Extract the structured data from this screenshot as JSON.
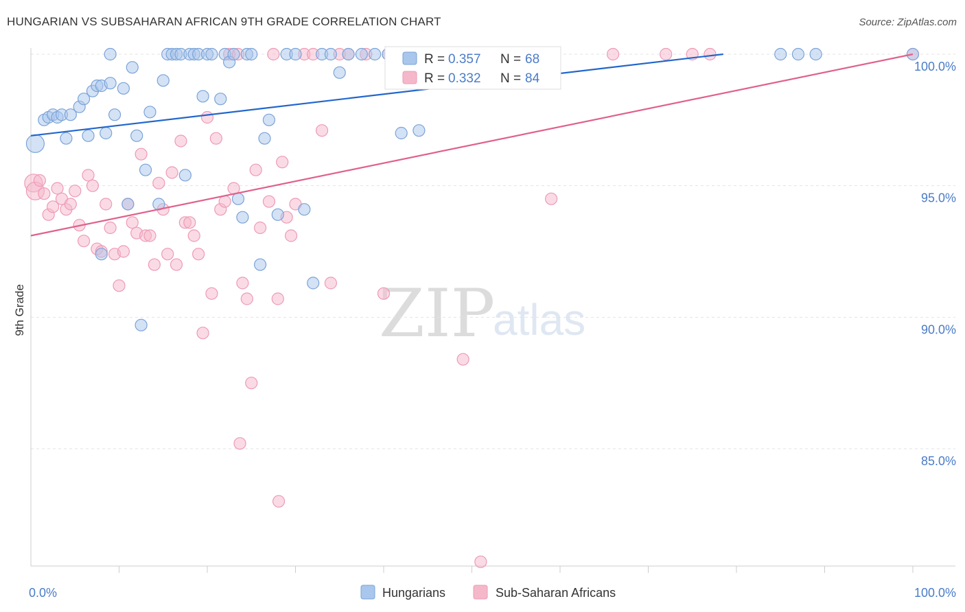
{
  "title": "HUNGARIAN VS SUBSAHARAN AFRICAN 9TH GRADE CORRELATION CHART",
  "source": "Source: ZipAtlas.com",
  "watermark": {
    "zip": "ZIP",
    "atlas": "atlas"
  },
  "colors": {
    "blue_fill": "#a9c6ec",
    "blue_stroke": "#7aa3d8",
    "blue_line": "#2266cc",
    "pink_fill": "#f5b8cb",
    "pink_stroke": "#ee9ab4",
    "pink_line": "#e0608a",
    "axis_label": "#4a7cc7",
    "grid": "#e3e3e3"
  },
  "legend": {
    "rows": [
      {
        "r_label": "R = ",
        "r_value": "0.357",
        "n_label": "N = ",
        "n_value": "68",
        "color": "blue"
      },
      {
        "r_label": "R = ",
        "r_value": "0.332",
        "n_label": "N = ",
        "n_value": "84",
        "color": "pink"
      }
    ]
  },
  "chart_data": {
    "type": "scatter",
    "title": "HUNGARIAN VS SUBSAHARAN AFRICAN 9TH GRADE CORRELATION CHART",
    "xlabel": "",
    "ylabel": "9th Grade",
    "xlim": [
      0,
      100
    ],
    "ylim": [
      80.5,
      100.8
    ],
    "x_tick_labels": [
      {
        "value": 0,
        "label": "0.0%"
      },
      {
        "value": 100,
        "label": "100.0%"
      }
    ],
    "x_minor_ticks": [
      10,
      20,
      30,
      40,
      50,
      60,
      70,
      80,
      90,
      100
    ],
    "y_ticks": [
      {
        "value": 100,
        "label": "100.0%"
      },
      {
        "value": 95,
        "label": "95.0%"
      },
      {
        "value": 90,
        "label": "90.0%"
      },
      {
        "value": 85,
        "label": "85.0%"
      }
    ],
    "grid": true,
    "legend_position": "top-center",
    "series": [
      {
        "name": "Hungarians",
        "color": "blue",
        "trend": {
          "x": [
            0,
            78.5
          ],
          "y": [
            96.9,
            100.0
          ]
        },
        "points": [
          [
            0.5,
            96.6
          ],
          [
            1.5,
            97.5
          ],
          [
            2.0,
            97.6
          ],
          [
            2.5,
            97.7
          ],
          [
            3.0,
            97.6
          ],
          [
            3.5,
            97.7
          ],
          [
            4.0,
            96.8
          ],
          [
            4.5,
            97.7
          ],
          [
            5.5,
            98.0
          ],
          [
            6.0,
            98.3
          ],
          [
            6.5,
            96.9
          ],
          [
            7.0,
            98.6
          ],
          [
            7.5,
            98.8
          ],
          [
            8.0,
            98.8
          ],
          [
            8.5,
            97.0
          ],
          [
            9.0,
            98.9
          ],
          [
            9.5,
            97.7
          ],
          [
            10.5,
            98.7
          ],
          [
            11.0,
            94.3
          ],
          [
            11.5,
            99.5
          ],
          [
            12.0,
            96.9
          ],
          [
            12.5,
            89.7
          ],
          [
            13.0,
            95.6
          ],
          [
            13.5,
            97.8
          ],
          [
            14.5,
            94.3
          ],
          [
            15.0,
            99.0
          ],
          [
            15.5,
            100.0
          ],
          [
            16.0,
            100.0
          ],
          [
            16.5,
            100.0
          ],
          [
            17.0,
            100.0
          ],
          [
            17.5,
            95.4
          ],
          [
            18.0,
            100.0
          ],
          [
            18.5,
            100.0
          ],
          [
            19.0,
            100.0
          ],
          [
            19.5,
            98.4
          ],
          [
            20.0,
            100.0
          ],
          [
            20.5,
            100.0
          ],
          [
            21.5,
            98.3
          ],
          [
            22.0,
            100.0
          ],
          [
            22.5,
            99.7
          ],
          [
            23.0,
            100.0
          ],
          [
            23.5,
            94.5
          ],
          [
            24.0,
            93.8
          ],
          [
            24.5,
            100.0
          ],
          [
            25.0,
            100.0
          ],
          [
            26.0,
            92.0
          ],
          [
            26.5,
            96.8
          ],
          [
            27.0,
            97.5
          ],
          [
            28.0,
            93.9
          ],
          [
            29.0,
            100.0
          ],
          [
            30.0,
            100.0
          ],
          [
            31.0,
            94.1
          ],
          [
            32.0,
            91.3
          ],
          [
            33.0,
            100.0
          ],
          [
            34.0,
            100.0
          ],
          [
            35.0,
            99.3
          ],
          [
            36.0,
            100.0
          ],
          [
            37.5,
            100.0
          ],
          [
            39.0,
            100.0
          ],
          [
            40.5,
            100.0
          ],
          [
            42.0,
            97.0
          ],
          [
            44.0,
            97.1
          ],
          [
            8.0,
            92.4
          ],
          [
            9.0,
            100.0
          ],
          [
            85.0,
            100.0
          ],
          [
            87.0,
            100.0
          ],
          [
            89.0,
            100.0
          ],
          [
            100.0,
            100.0
          ]
        ]
      },
      {
        "name": "Sub-Saharan Africans",
        "color": "pink",
        "trend": {
          "x": [
            0,
            100
          ],
          "y": [
            93.1,
            100.0
          ]
        },
        "points": [
          [
            0.3,
            95.1
          ],
          [
            0.5,
            94.8
          ],
          [
            1.0,
            95.2
          ],
          [
            1.5,
            94.7
          ],
          [
            2.0,
            93.9
          ],
          [
            2.5,
            94.2
          ],
          [
            3.0,
            94.9
          ],
          [
            3.5,
            94.5
          ],
          [
            4.0,
            94.1
          ],
          [
            4.5,
            94.3
          ],
          [
            5.0,
            94.8
          ],
          [
            5.5,
            93.5
          ],
          [
            6.0,
            92.9
          ],
          [
            6.5,
            95.4
          ],
          [
            7.0,
            95.0
          ],
          [
            7.5,
            92.6
          ],
          [
            8.0,
            92.5
          ],
          [
            8.5,
            94.3
          ],
          [
            9.0,
            93.4
          ],
          [
            9.5,
            92.4
          ],
          [
            10.0,
            91.2
          ],
          [
            10.5,
            92.5
          ],
          [
            11.0,
            94.3
          ],
          [
            11.5,
            93.6
          ],
          [
            12.0,
            93.2
          ],
          [
            12.5,
            96.2
          ],
          [
            13.0,
            93.1
          ],
          [
            13.5,
            93.1
          ],
          [
            14.0,
            92.0
          ],
          [
            14.5,
            95.1
          ],
          [
            15.0,
            94.1
          ],
          [
            15.5,
            92.4
          ],
          [
            16.0,
            95.5
          ],
          [
            16.5,
            92.0
          ],
          [
            17.0,
            96.7
          ],
          [
            17.5,
            93.6
          ],
          [
            18.0,
            93.6
          ],
          [
            18.5,
            93.1
          ],
          [
            19.0,
            92.4
          ],
          [
            19.5,
            89.4
          ],
          [
            20.0,
            97.6
          ],
          [
            20.5,
            90.9
          ],
          [
            21.0,
            96.8
          ],
          [
            21.5,
            94.1
          ],
          [
            22.0,
            94.4
          ],
          [
            22.5,
            100.0
          ],
          [
            23.0,
            94.9
          ],
          [
            23.5,
            100.0
          ],
          [
            24.0,
            91.3
          ],
          [
            24.5,
            90.7
          ],
          [
            25.0,
            87.5
          ],
          [
            25.5,
            95.6
          ],
          [
            26.0,
            93.4
          ],
          [
            27.0,
            94.4
          ],
          [
            27.5,
            100.0
          ],
          [
            28.0,
            90.7
          ],
          [
            28.5,
            95.9
          ],
          [
            29.0,
            93.8
          ],
          [
            29.5,
            93.1
          ],
          [
            30.0,
            94.3
          ],
          [
            31.0,
            100.0
          ],
          [
            32.0,
            100.0
          ],
          [
            33.0,
            97.1
          ],
          [
            34.0,
            91.3
          ],
          [
            35.0,
            100.0
          ],
          [
            36.0,
            100.0
          ],
          [
            38.0,
            100.0
          ],
          [
            40.0,
            90.9
          ],
          [
            40.5,
            100.0
          ],
          [
            43.0,
            100.0
          ],
          [
            45.0,
            100.0
          ],
          [
            47.0,
            100.0
          ],
          [
            49.0,
            88.4
          ],
          [
            51.0,
            80.7
          ],
          [
            53.0,
            100.0
          ],
          [
            55.0,
            100.0
          ],
          [
            59.0,
            94.5
          ],
          [
            66.0,
            100.0
          ],
          [
            72.0,
            100.0
          ],
          [
            75.0,
            100.0
          ],
          [
            77.0,
            100.0
          ],
          [
            23.7,
            85.2
          ],
          [
            28.1,
            83.0
          ],
          [
            100.0,
            100.0
          ]
        ]
      }
    ]
  },
  "bottom_legend": [
    {
      "label": "Hungarians",
      "color": "blue"
    },
    {
      "label": "Sub-Saharan Africans",
      "color": "pink"
    }
  ]
}
